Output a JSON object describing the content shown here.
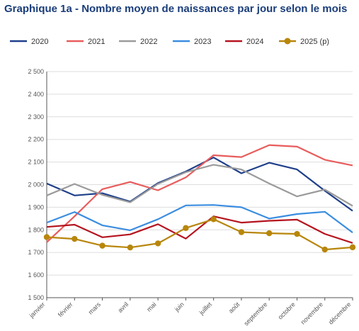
{
  "chart_data": {
    "type": "line",
    "title": "Graphique 1a - Nombre moyen de naissances par jour selon le mois",
    "xlabel": "",
    "ylabel": "",
    "ylim": [
      1500,
      2500
    ],
    "yticks": [
      1500,
      1600,
      1700,
      1800,
      1900,
      2000,
      2100,
      2200,
      2300,
      2400,
      2500
    ],
    "ytick_labels": [
      "1 500",
      "1 600",
      "1 700",
      "1 800",
      "1 900",
      "2 000",
      "2 100",
      "2 200",
      "2 300",
      "2 400",
      "2 500"
    ],
    "grid": true,
    "legend": "top",
    "categories": [
      "janvier",
      "février",
      "mars",
      "avril",
      "mai",
      "juin",
      "juillet",
      "août",
      "septembre",
      "octobre",
      "novembre",
      "décembre"
    ],
    "series": [
      {
        "name": "2020",
        "color": "#1f3f8a",
        "markers": false,
        "values": [
          2005,
          1952,
          1962,
          1925,
          2007,
          2058,
          2120,
          2050,
          2097,
          2067,
          1973,
          1884
        ]
      },
      {
        "name": "2021",
        "color": "#e85c5c",
        "markers": false,
        "values": [
          1745,
          1860,
          1980,
          2012,
          1975,
          2032,
          2130,
          2122,
          2175,
          2168,
          2110,
          2085
        ]
      },
      {
        "name": "2022",
        "color": "#9b9b9b",
        "markers": false,
        "values": [
          1952,
          2003,
          1955,
          1922,
          2003,
          2055,
          2088,
          2067,
          2005,
          1948,
          1978,
          1906
        ]
      },
      {
        "name": "2023",
        "color": "#3a8de0",
        "markers": false,
        "values": [
          1832,
          1879,
          1820,
          1798,
          1847,
          1908,
          1910,
          1900,
          1850,
          1870,
          1880,
          1788
        ]
      },
      {
        "name": "2024",
        "color": "#b5141f",
        "markers": false,
        "values": [
          1813,
          1823,
          1767,
          1780,
          1825,
          1761,
          1860,
          1832,
          1840,
          1845,
          1782,
          1742
        ]
      },
      {
        "name": "2025 (p)",
        "color": "#b8860b",
        "markers": true,
        "values": [
          1768,
          1760,
          1730,
          1722,
          1740,
          1808,
          1847,
          1790,
          1785,
          1782,
          1713,
          1723
        ]
      }
    ]
  }
}
